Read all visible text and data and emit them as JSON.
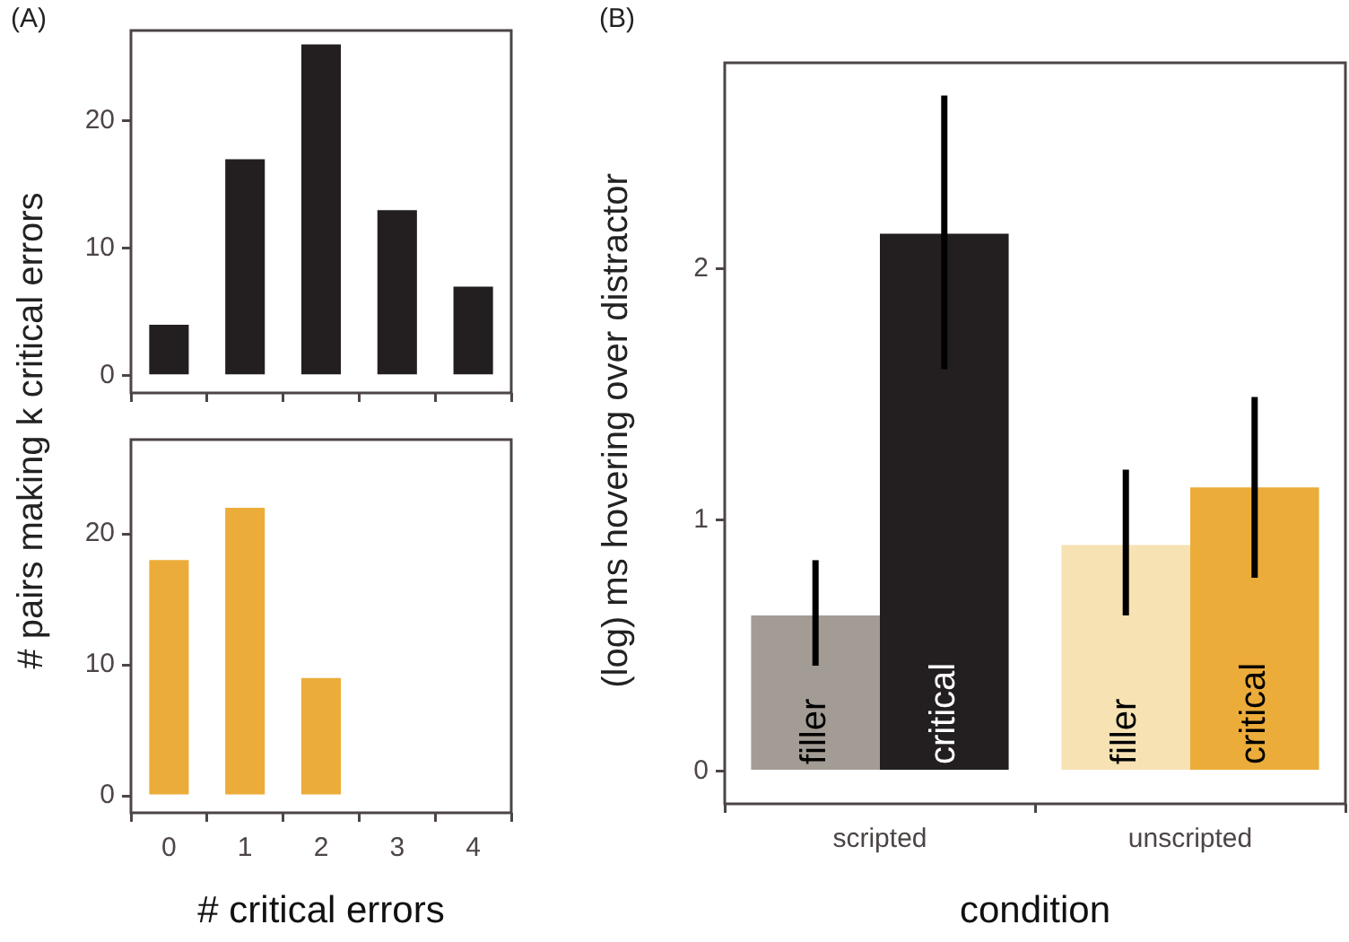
{
  "chart_data": [
    {
      "type": "bar",
      "title": "(A)",
      "ylabel": "# pairs making k critical errors",
      "categories": [
        "0",
        "1",
        "2",
        "3",
        "4"
      ],
      "values": [
        4,
        17,
        26,
        13,
        7
      ],
      "color": "#231f20",
      "ylim": [
        -1.35,
        27.1
      ],
      "yticks": [
        0,
        10,
        20
      ],
      "grid": false,
      "legend": false,
      "tick_labels": "y"
    },
    {
      "type": "bar",
      "xlabel": "# critical errors",
      "categories": [
        "0",
        "1",
        "2",
        "3",
        "4"
      ],
      "values": [
        18,
        22,
        9,
        0,
        0
      ],
      "color": "#ecac3a",
      "ylim": [
        -1.3,
        27.2
      ],
      "yticks": [
        0,
        10,
        20
      ],
      "grid": false,
      "legend": false
    },
    {
      "type": "bar",
      "title": "(B)",
      "xlabel": "condition",
      "ylabel": "(log) ms hovering over distractor",
      "categories": [
        "scripted",
        "unscripted"
      ],
      "ylim": [
        -0.13,
        2.82
      ],
      "yticks": [
        0,
        1,
        2
      ],
      "grid": false,
      "legend": false,
      "series": [
        {
          "name": "filler",
          "colors": [
            "#a39c95",
            "#f6e2b3"
          ],
          "values": [
            0.62,
            0.9
          ],
          "errors": [
            [
              0.42,
              0.84
            ],
            [
              0.62,
              1.2
            ]
          ]
        },
        {
          "name": "critical",
          "colors": [
            "#231f20",
            "#ecac3a"
          ],
          "values": [
            2.14,
            1.13
          ],
          "errors": [
            [
              1.6,
              2.69
            ],
            [
              0.77,
              1.49
            ]
          ]
        }
      ]
    }
  ]
}
